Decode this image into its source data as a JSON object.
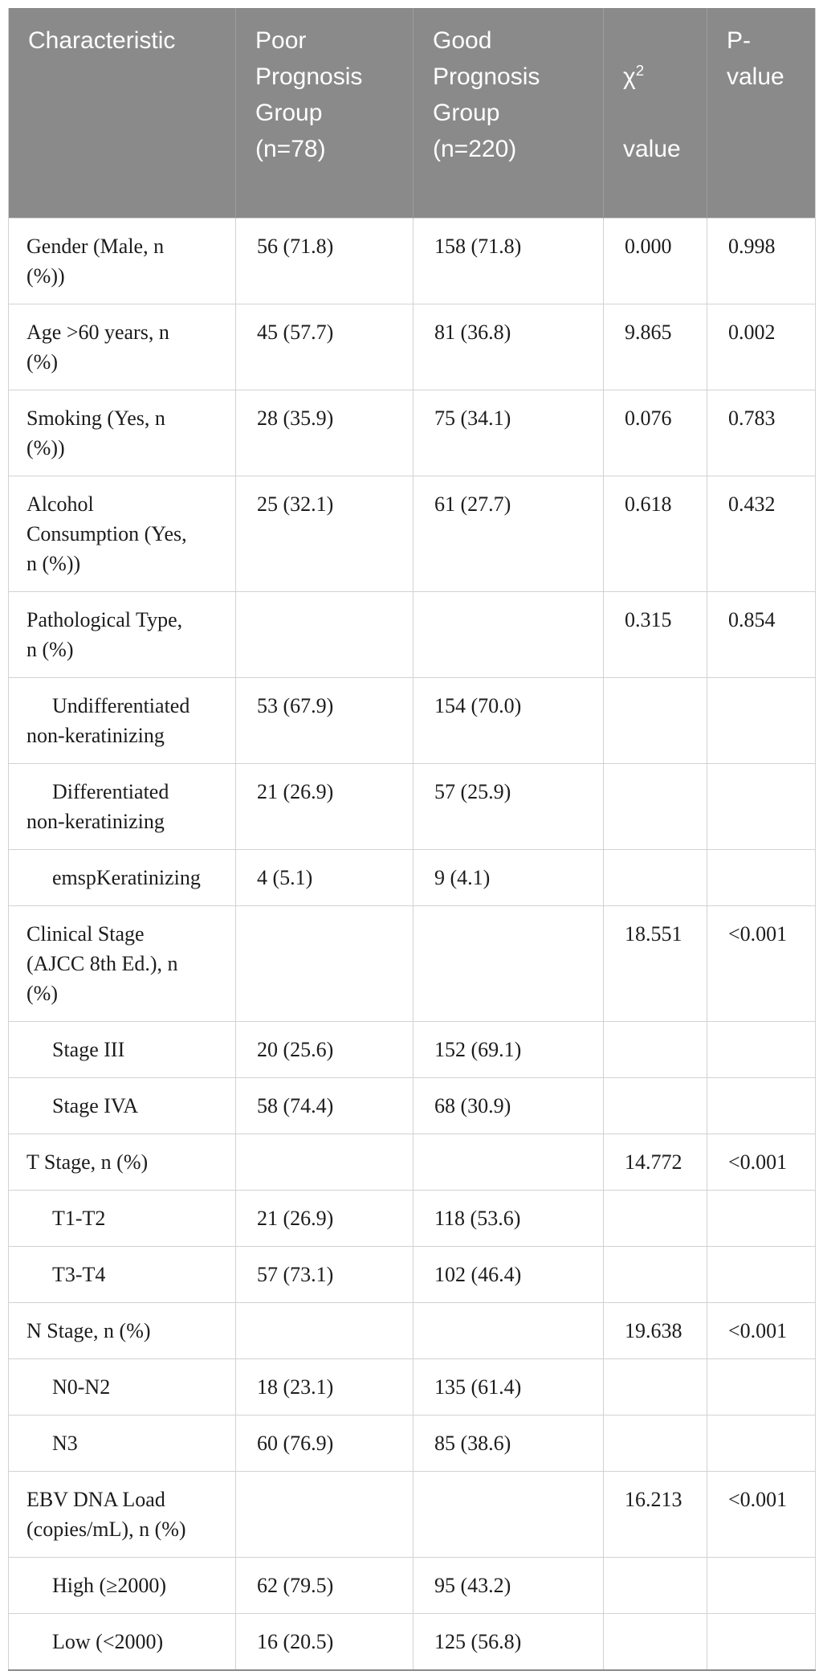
{
  "table": {
    "header": {
      "characteristic": "Characteristic",
      "poor_group_lines": [
        "Poor",
        "Prognosis",
        "Group",
        "(n=78)"
      ],
      "good_group_lines": [
        "Good",
        "Prognosis",
        "Group",
        "(n=220)"
      ],
      "chi_square": {
        "symbol": "χ",
        "sup": "2",
        "label": "value"
      },
      "p_value_lines": [
        "P-",
        "value"
      ]
    },
    "rows": [
      {
        "label": "Gender (Male, n\n(%))",
        "poor": "56 (71.8)",
        "good": "158 (71.8)",
        "chi": "0.000",
        "p": "0.998",
        "indent": false
      },
      {
        "label": "Age >60 years, n\n(%)",
        "poor": "45 (57.7)",
        "good": "81 (36.8)",
        "chi": "9.865",
        "p": "0.002",
        "indent": false
      },
      {
        "label": "Smoking (Yes, n\n(%))",
        "poor": "28 (35.9)",
        "good": "75 (34.1)",
        "chi": "0.076",
        "p": "0.783",
        "indent": false
      },
      {
        "label": "Alcohol\nConsumption (Yes,\nn (%))",
        "poor": "25 (32.1)",
        "good": "61 (27.7)",
        "chi": "0.618",
        "p": "0.432",
        "indent": false
      },
      {
        "label": "Pathological Type,\nn (%)",
        "poor": "",
        "good": "",
        "chi": "0.315",
        "p": "0.854",
        "indent": false
      },
      {
        "label": "Undifferentiated\nnon-keratinizing",
        "poor": "53 (67.9)",
        "good": "154 (70.0)",
        "chi": "",
        "p": "",
        "indent": true
      },
      {
        "label": "Differentiated\nnon-keratinizing",
        "poor": "21 (26.9)",
        "good": "57 (25.9)",
        "chi": "",
        "p": "",
        "indent": true
      },
      {
        "label": "emspKeratinizing",
        "poor": "4 (5.1)",
        "good": "9 (4.1)",
        "chi": "",
        "p": "",
        "indent": true
      },
      {
        "label": "Clinical Stage\n(AJCC 8th Ed.), n\n(%)",
        "poor": "",
        "good": "",
        "chi": "18.551",
        "p": "<0.001",
        "indent": false
      },
      {
        "label": "Stage III",
        "poor": "20 (25.6)",
        "good": "152 (69.1)",
        "chi": "",
        "p": "",
        "indent": true
      },
      {
        "label": "Stage IVA",
        "poor": "58 (74.4)",
        "good": "68 (30.9)",
        "chi": "",
        "p": "",
        "indent": true
      },
      {
        "label": "T Stage, n (%)",
        "poor": "",
        "good": "",
        "chi": "14.772",
        "p": "<0.001",
        "indent": false
      },
      {
        "label": "T1-T2",
        "poor": "21 (26.9)",
        "good": "118 (53.6)",
        "chi": "",
        "p": "",
        "indent": true
      },
      {
        "label": "T3-T4",
        "poor": "57 (73.1)",
        "good": "102 (46.4)",
        "chi": "",
        "p": "",
        "indent": true
      },
      {
        "label": "N Stage, n (%)",
        "poor": "",
        "good": "",
        "chi": "19.638",
        "p": "<0.001",
        "indent": false
      },
      {
        "label": "N0-N2",
        "poor": "18 (23.1)",
        "good": "135 (61.4)",
        "chi": "",
        "p": "",
        "indent": true
      },
      {
        "label": "N3",
        "poor": "60 (76.9)",
        "good": "85 (38.6)",
        "chi": "",
        "p": "",
        "indent": true
      },
      {
        "label": "EBV DNA Load\n(copies/mL), n (%)",
        "poor": "",
        "good": "",
        "chi": "16.213",
        "p": "<0.001",
        "indent": false
      },
      {
        "label": "High (≥2000)",
        "poor": "62 (79.5)",
        "good": "95 (43.2)",
        "chi": "",
        "p": "",
        "indent": true
      },
      {
        "label": "Low (<2000)",
        "poor": "16 (20.5)",
        "good": "125 (56.8)",
        "chi": "",
        "p": "",
        "indent": true
      }
    ]
  },
  "colors": {
    "header_bg": "#8a8a8a",
    "header_text": "#ffffff",
    "header_divider": "#9e9e9e",
    "body_text": "#1c1c1c",
    "grid_line": "#d2d2d2",
    "bottom_border": "#8a8a8a"
  }
}
